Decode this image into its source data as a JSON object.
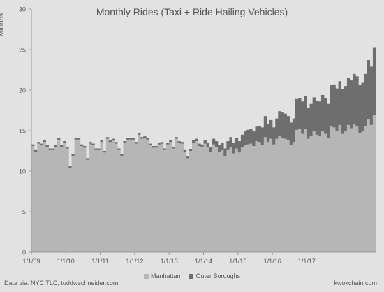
{
  "footer": {
    "source": "Data via: NYC TLC, toddwschneider.com",
    "credit": "kwokchain.com"
  },
  "chart_data": {
    "type": "area",
    "stacked": true,
    "title": "Monthly Rides (Taxi + Ride Hailing Vehicles)",
    "ylabel": "Millions",
    "xlabel": "",
    "ylim": [
      0,
      30
    ],
    "y_ticks": [
      0,
      5,
      10,
      15,
      20,
      25,
      30
    ],
    "x_start": "2009-01",
    "x_tick_labels": [
      "1/1/09",
      "1/1/10",
      "1/1/11",
      "1/1/12",
      "1/1/13",
      "1/1/14",
      "1/1/15",
      "1/1/16",
      "1/1/17"
    ],
    "grid": false,
    "legend_position": "bottom",
    "colors": {
      "background": "#e2e2e2",
      "manhattan": "#b6b6b6",
      "outer_boroughs": "#6e6e6e",
      "axis": "#999999",
      "text": "#555555"
    },
    "series": [
      {
        "name": "Manhattan",
        "values": [
          13.1,
          12.4,
          13.4,
          13.2,
          13.6,
          13.0,
          12.6,
          12.6,
          13.0,
          13.9,
          13.0,
          13.5,
          12.8,
          10.4,
          11.9,
          13.9,
          13.9,
          13.1,
          12.9,
          11.4,
          13.4,
          13.2,
          12.6,
          12.6,
          13.6,
          12.3,
          14.0,
          13.6,
          13.8,
          13.4,
          12.6,
          11.9,
          13.5,
          13.9,
          13.9,
          13.9,
          13.4,
          14.5,
          14.0,
          14.1,
          13.9,
          13.2,
          12.9,
          12.9,
          13.3,
          13.4,
          12.6,
          13.3,
          13.6,
          12.8,
          14.0,
          13.5,
          13.4,
          12.4,
          11.6,
          12.5,
          13.5,
          13.7,
          13.1,
          13.0,
          13.4,
          13.0,
          12.4,
          13.3,
          13.0,
          12.4,
          12.6,
          11.8,
          12.6,
          13.0,
          12.2,
          12.8,
          12.3,
          13.0,
          13.2,
          13.3,
          13.4,
          13.1,
          13.7,
          13.6,
          13.2,
          14.2,
          13.6,
          14.0,
          13.3,
          14.0,
          14.4,
          14.1,
          14.0,
          13.8,
          13.2,
          13.6,
          15.1,
          15.2,
          14.6,
          15.2,
          14.0,
          14.3,
          15.0,
          14.5,
          14.4,
          14.9,
          14.6,
          14.1,
          15.6,
          15.4,
          15.0,
          15.7,
          14.6,
          14.9,
          15.7,
          15.3,
          15.8,
          15.5,
          14.7,
          14.9,
          15.6,
          16.4,
          15.7,
          16.9
        ]
      },
      {
        "name": "Outer Boroughs",
        "values": [
          0.2,
          0.2,
          0.2,
          0.2,
          0.2,
          0.2,
          0.2,
          0.2,
          0.2,
          0.2,
          0.2,
          0.2,
          0.2,
          0.2,
          0.2,
          0.2,
          0.2,
          0.2,
          0.2,
          0.2,
          0.2,
          0.2,
          0.2,
          0.2,
          0.2,
          0.2,
          0.2,
          0.2,
          0.2,
          0.2,
          0.2,
          0.2,
          0.2,
          0.2,
          0.2,
          0.2,
          0.2,
          0.2,
          0.2,
          0.2,
          0.2,
          0.2,
          0.2,
          0.2,
          0.2,
          0.2,
          0.2,
          0.2,
          0.2,
          0.2,
          0.2,
          0.2,
          0.2,
          0.2,
          0.2,
          0.2,
          0.3,
          0.3,
          0.3,
          0.3,
          0.4,
          0.5,
          0.6,
          0.7,
          0.7,
          0.8,
          0.9,
          1.0,
          1.1,
          1.2,
          1.3,
          1.3,
          1.4,
          1.5,
          1.7,
          1.8,
          1.8,
          1.8,
          1.8,
          2.0,
          2.2,
          2.6,
          2.2,
          2.3,
          2.1,
          2.5,
          3.0,
          3.2,
          3.1,
          3.0,
          2.8,
          2.9,
          3.8,
          3.8,
          4.0,
          4.1,
          3.8,
          4.0,
          4.1,
          4.2,
          4.2,
          4.5,
          4.4,
          4.2,
          5.0,
          5.3,
          5.2,
          5.4,
          5.5,
          5.6,
          5.8,
          5.9,
          6.2,
          6.2,
          5.9,
          6.0,
          6.4,
          7.3,
          7.2,
          8.4
        ]
      }
    ]
  }
}
